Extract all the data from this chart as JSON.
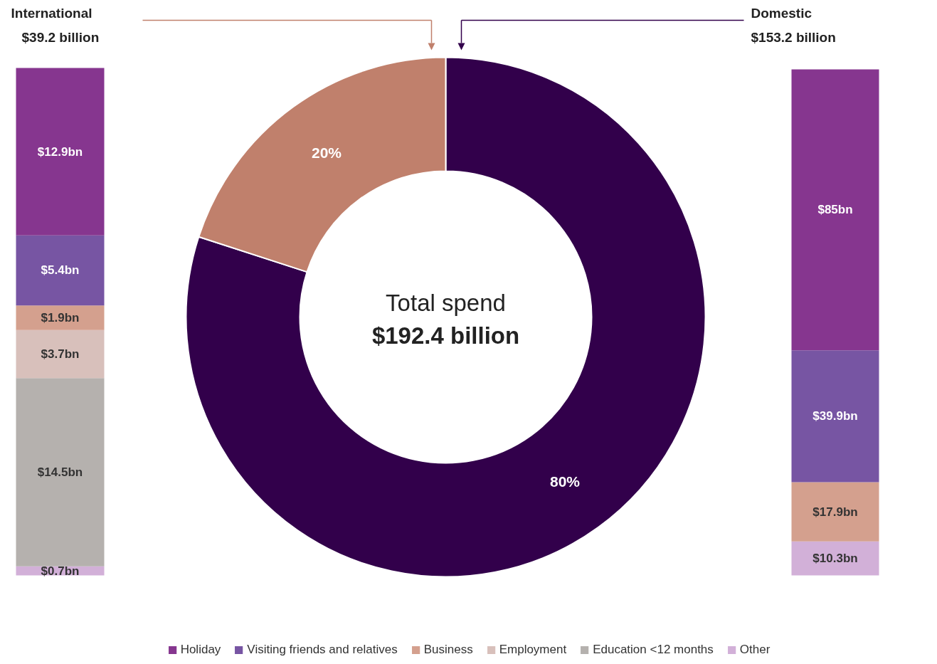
{
  "chart_data": [
    {
      "type": "bar",
      "stacked": true,
      "title": "International",
      "subtitle": "$39.2 billion",
      "categories": [
        null
      ],
      "ylim": [
        0,
        39.1
      ],
      "legend": "bottom",
      "series": [
        {
          "name": "Other",
          "color": "#d2b0d8",
          "values": [
            0.7
          ],
          "value_labels": [
            "$0.7bn"
          ]
        },
        {
          "name": "Education <12 months",
          "color": "#b5b1ae",
          "values": [
            14.5
          ],
          "value_labels": [
            "$14.5bn"
          ]
        },
        {
          "name": "Employment",
          "color": "#d8c0bb",
          "values": [
            3.7
          ],
          "value_labels": [
            "$3.7bn"
          ]
        },
        {
          "name": "Business",
          "color": "#d4a08e",
          "values": [
            1.9
          ],
          "value_labels": [
            "$1.9bn"
          ]
        },
        {
          "name": "Visiting friends and relatives",
          "color": "#7755a3",
          "values": [
            5.4
          ],
          "value_labels": [
            "$5.4bn"
          ]
        },
        {
          "name": "Holiday",
          "color": "#86368f",
          "values": [
            12.9
          ],
          "value_labels": [
            "$12.9bn"
          ]
        }
      ]
    },
    {
      "type": "donut",
      "categories": [
        null,
        null
      ],
      "values": [
        80,
        20
      ],
      "colors": [
        "#32004b",
        "#c0806c"
      ],
      "value_labels": [
        "80%",
        "20%"
      ],
      "annotations": [
        "Total spend",
        "$192.4 billion"
      ]
    },
    {
      "type": "bar",
      "stacked": true,
      "title": "Domestic",
      "subtitle": "$153.2 billion",
      "categories": [
        null
      ],
      "ylim": [
        0,
        153.1
      ],
      "series": [
        {
          "color": "#d2b0d8",
          "values": [
            10.3
          ],
          "value_labels": [
            "$10.3bn"
          ]
        },
        {
          "color": "#d4a08e",
          "values": [
            17.9
          ],
          "value_labels": [
            "$17.9bn"
          ]
        },
        {
          "color": "#7755a3",
          "values": [
            39.9
          ],
          "value_labels": [
            "$39.9bn"
          ]
        },
        {
          "color": "#86368f",
          "values": [
            85
          ],
          "value_labels": [
            "$85bn"
          ]
        }
      ]
    }
  ]
}
